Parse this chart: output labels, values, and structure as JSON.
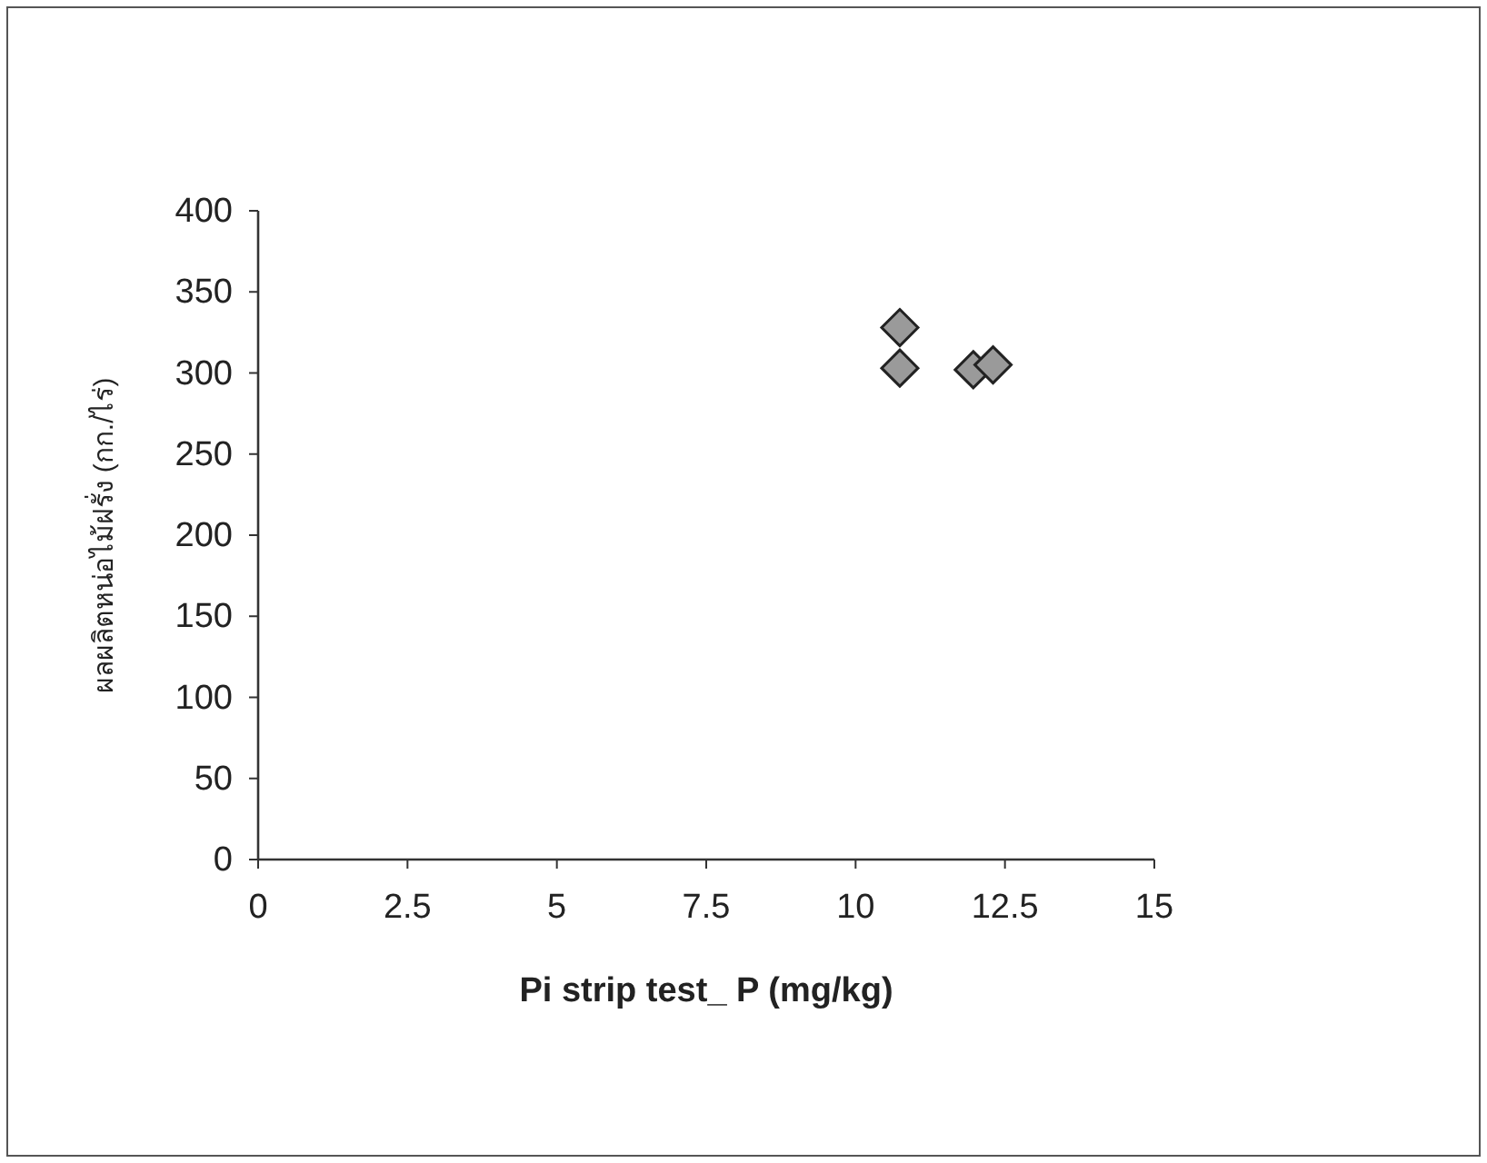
{
  "chart_data": {
    "type": "scatter",
    "xlabel": "Pi strip test_ P (mg/kg)",
    "ylabel": "ผลผลิตหน่อไม้ฝรั่ง (กก./ไร่)",
    "x": [
      10.74,
      10.74,
      11.97,
      12.3
    ],
    "series": [
      {
        "color": "#9a9a9a",
        "values": [
          328,
          303,
          302,
          305
        ]
      }
    ],
    "xlim": [
      0,
      15
    ],
    "xticks": [
      0,
      2.5,
      5,
      7.5,
      10,
      12.5,
      15
    ],
    "ylim": [
      0,
      400
    ],
    "yticks": [
      0,
      50,
      100,
      150,
      200,
      250,
      300,
      350,
      400
    ],
    "marker": "diamond",
    "grid": false
  }
}
